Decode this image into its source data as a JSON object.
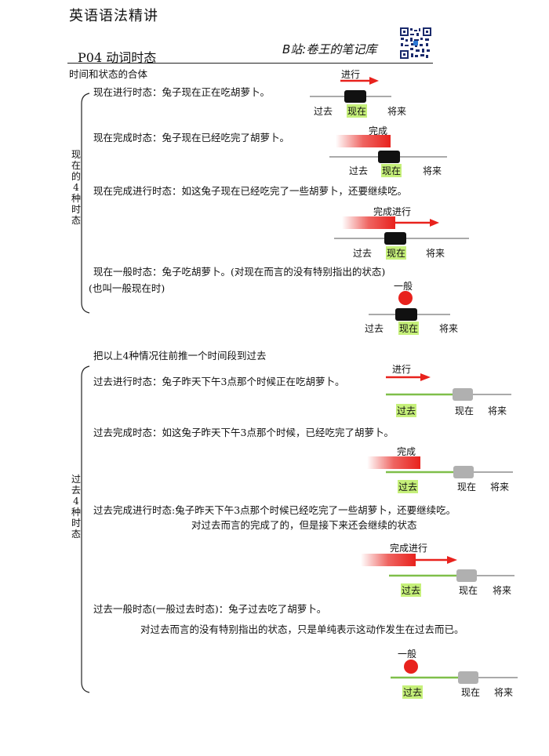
{
  "header": {
    "title": "英语语法精讲",
    "page_title": "P04  动词时态",
    "bilibili": "B站:卷王的笔记库"
  },
  "intro": "时间和状态的合体",
  "present": {
    "group_label": "现在的4种时态",
    "items": [
      {
        "text": "现在进行时态：兔子现在正在吃胡萝卜。",
        "extra": ""
      },
      {
        "text": "现在完成时态：兔子现在已经吃完了胡萝卜。",
        "extra": ""
      },
      {
        "text": "现在完成进行时态：如这兔子现在已经吃完了一些胡萝卜，还要继续吃。",
        "extra": ""
      },
      {
        "text": "现在一般时态：兔子吃胡萝卜。(对现在而言的没有特别指出的状态)",
        "extra": "(也叫一般现在时)"
      }
    ],
    "diagrams": [
      {
        "label": "进行",
        "past": "过去",
        "now": "现在",
        "future": "将来"
      },
      {
        "label": "完成",
        "past": "过去",
        "now": "现在",
        "future": "将来"
      },
      {
        "label": "完成进行",
        "past": "过去",
        "now": "现在",
        "future": "将来"
      },
      {
        "label": "一般",
        "past": "过去",
        "now": "现在",
        "future": "将来"
      }
    ]
  },
  "transition": "把以上4种情况往前推一个时间段到过去",
  "past": {
    "group_label": "过去4种时态",
    "items": [
      {
        "text": "过去进行时态：兔子昨天下午3点那个时候正在吃胡萝卜。",
        "extra": ""
      },
      {
        "text": "过去完成时态：如这兔子昨天下午3点那个时候，已经吃完了胡萝卜。",
        "extra": ""
      },
      {
        "text": "过去完成进行时态:兔子昨天下午3点那个时候已经吃完了一些胡萝卜，还要继续吃。",
        "extra": "对过去而言的完成了的，但是接下来还会继续的状态"
      },
      {
        "text": "过去一般时态(一般过去时态)：兔子过去吃了胡萝卜。",
        "extra": "对过去而言的没有特别指出的状态，只是单纯表示这动作发生在过去而已。"
      }
    ],
    "diagrams": [
      {
        "label": "进行",
        "past": "过去",
        "now": "现在",
        "future": "将来"
      },
      {
        "label": "完成",
        "past": "过去",
        "now": "现在",
        "future": "将来"
      },
      {
        "label": "完成进行",
        "past": "过去",
        "now": "现在",
        "future": "将来"
      },
      {
        "label": "一般",
        "past": "过去",
        "now": "现在",
        "future": "将来"
      }
    ]
  },
  "colors": {
    "red": "#e8221d",
    "highlight": "#c6f07a",
    "green_line": "#7fbf4a",
    "grey_box": "#b0b0b0",
    "black_box": "#111111"
  }
}
